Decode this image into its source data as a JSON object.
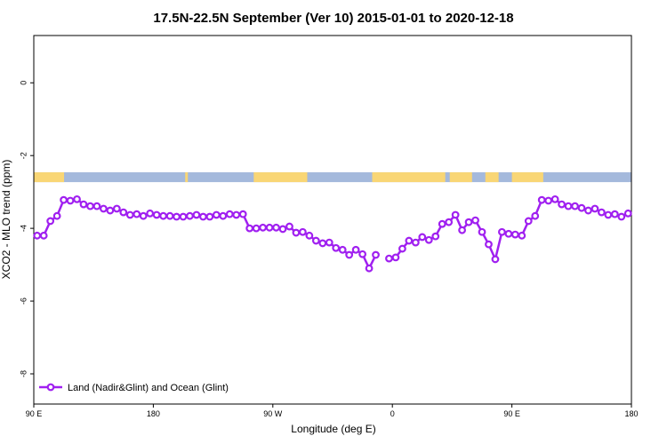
{
  "chart_data": {
    "type": "line",
    "title": "17.5N-22.5N September (Ver 10)   2015-01-01 to 2020-12-18",
    "x_label": "Longitude (deg E)",
    "y_label": "XCO2 - MLO trend (ppm)",
    "xlim": [
      90,
      540
    ],
    "xticks": [
      {
        "value": 90,
        "label": "90 E"
      },
      180,
      {
        "value": 270,
        "label": "90 W"
      },
      {
        "value": 360,
        "label": "0"
      },
      {
        "value": 450,
        "label": "90 E"
      },
      {
        "value": 540,
        "label": "180"
      }
    ],
    "ylim": [
      -8.83,
      1.3
    ],
    "yticks": [
      0,
      -2,
      -4,
      -6,
      -8
    ],
    "legend": "bottom-left",
    "map_strip": {
      "ylim": [
        -2.73,
        -2.46
      ],
      "ocean_color": "#a4b9dc",
      "land_color": "#f9d675",
      "land": [
        [
          90,
          112.8
        ],
        [
          204,
          206
        ],
        [
          255.6,
          295.9
        ],
        [
          344.8,
          399.8
        ],
        [
          403.2,
          420
        ],
        [
          430,
          440
        ],
        [
          450,
          473.6
        ]
      ]
    },
    "series": [
      {
        "name": "Land (Nadir&Glint) and Ocean (Glint)",
        "color": "#a020f0",
        "x": [
          92.5,
          97.5,
          102.5,
          107.5,
          112.5,
          117.5,
          122.5,
          127.5,
          132.5,
          137.5,
          142.5,
          147.5,
          152.5,
          157.5,
          162.5,
          167.5,
          172.5,
          177.5,
          182.5,
          187.5,
          192.5,
          197.5,
          202.5,
          207.5,
          212.5,
          217.5,
          222.5,
          227.5,
          232.5,
          237.5,
          242.5,
          247.5,
          252.5,
          257.5,
          262.5,
          267.5,
          272.5,
          277.5,
          282.5,
          287.5,
          292.5,
          297.5,
          302.5,
          307.5,
          312.5,
          317.5,
          322.5,
          327.5,
          332.5,
          337.5,
          342.5,
          347.5,
          352.5,
          357.5,
          362.5,
          367.5,
          372.5,
          377.5,
          382.5,
          387.5,
          392.5,
          397.5,
          402.5,
          407.5,
          412.5,
          417.5,
          422.5,
          427.5,
          432.5,
          437.5,
          442.5,
          447.5,
          452.5,
          457.5,
          462.5,
          467.5,
          472.5,
          477.5,
          482.5,
          487.5,
          492.5,
          497.5,
          502.5,
          507.5,
          512.5,
          517.5,
          522.5,
          527.5,
          532.5,
          537.5
        ],
        "values": [
          -4.2,
          -4.2,
          -3.8,
          -3.66,
          -3.22,
          -3.24,
          -3.2,
          -3.34,
          -3.39,
          -3.39,
          -3.46,
          -3.51,
          -3.46,
          -3.56,
          -3.63,
          -3.61,
          -3.66,
          -3.59,
          -3.63,
          -3.66,
          -3.66,
          -3.68,
          -3.68,
          -3.66,
          -3.63,
          -3.68,
          -3.68,
          -3.63,
          -3.66,
          -3.61,
          -3.63,
          -3.61,
          -4.0,
          -4.0,
          -3.98,
          -3.98,
          -3.98,
          -4.02,
          -3.95,
          -4.12,
          -4.1,
          -4.2,
          -4.34,
          -4.41,
          -4.39,
          -4.54,
          -4.59,
          -4.73,
          -4.59,
          -4.71,
          -5.1,
          -4.73,
          null,
          -4.83,
          -4.8,
          -4.56,
          -4.34,
          -4.39,
          -4.24,
          -4.32,
          -4.22,
          -3.88,
          -3.83,
          -3.63,
          -4.05,
          -3.83,
          -3.78,
          -4.1,
          -4.44,
          -4.85,
          -4.1,
          -4.15,
          -4.17,
          -4.2,
          -3.8,
          -3.66,
          -3.22,
          -3.24,
          -3.2,
          -3.34,
          -3.39,
          -3.39,
          -3.44,
          -3.51,
          -3.46,
          -3.56,
          -3.63,
          -3.61,
          -3.68,
          -3.59
        ]
      }
    ]
  }
}
